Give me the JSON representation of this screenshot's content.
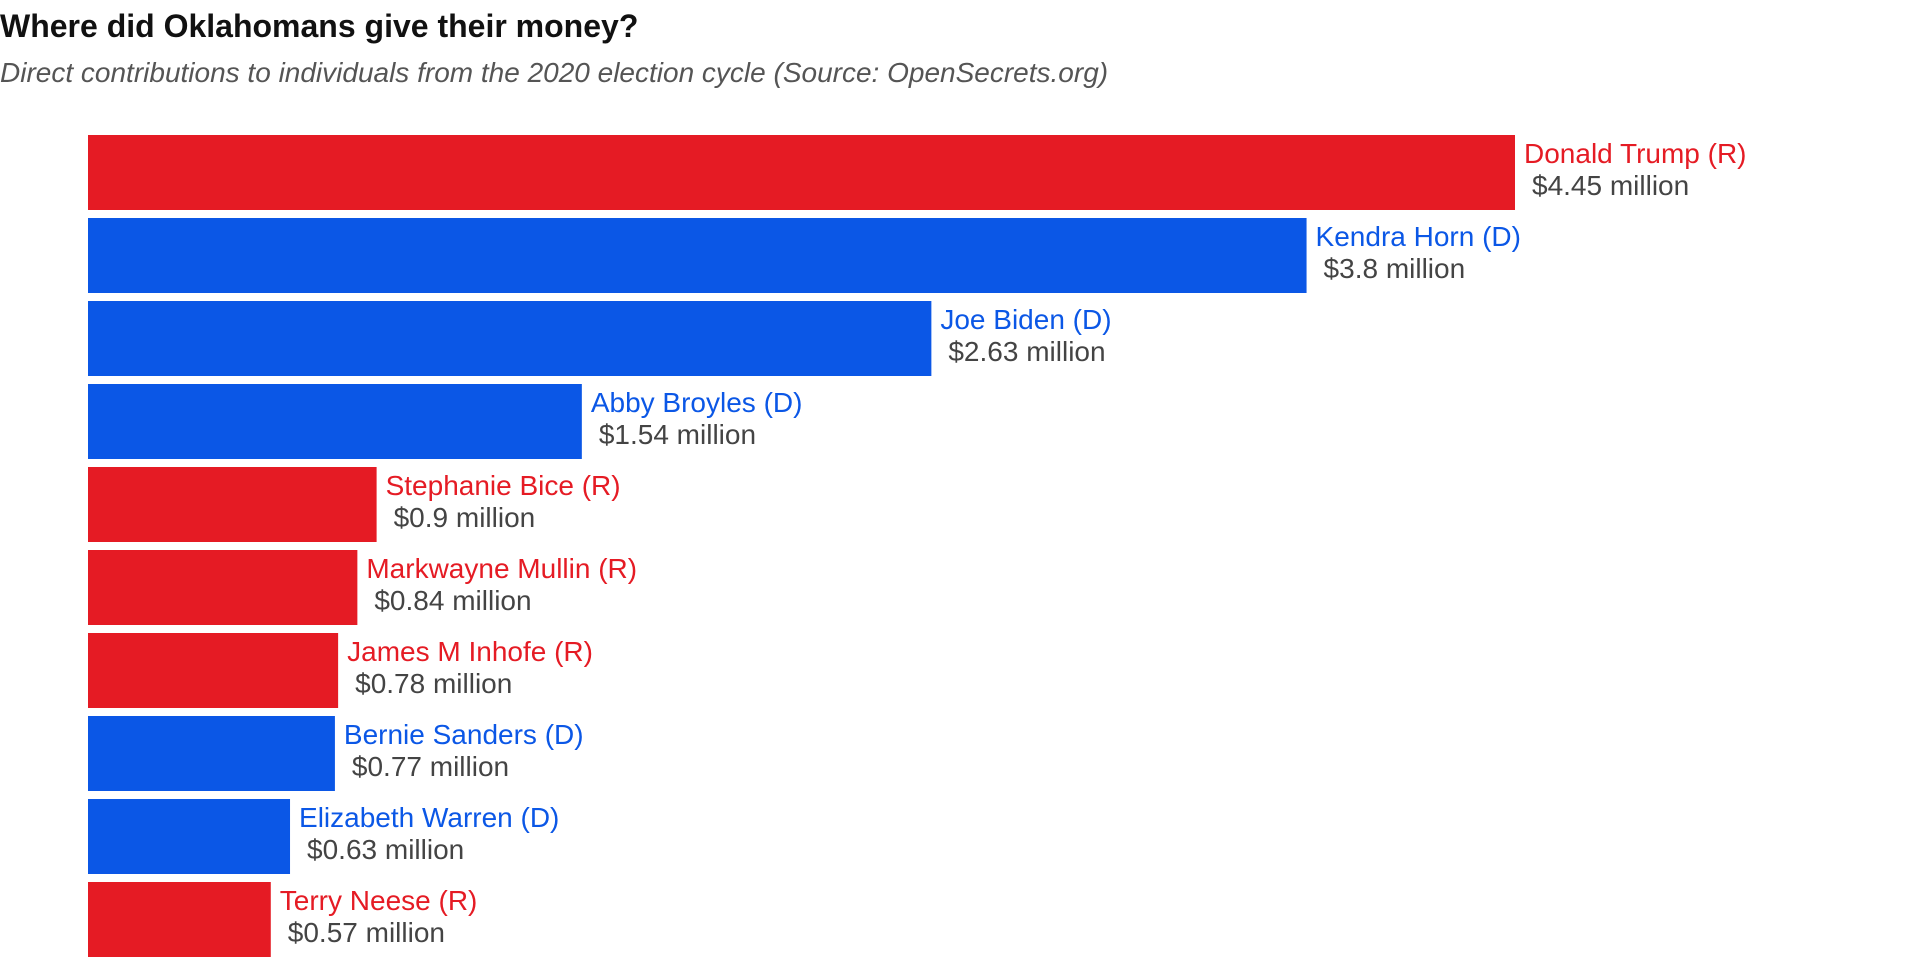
{
  "chart_data": {
    "type": "bar",
    "orientation": "horizontal",
    "title": "Where did Oklahomans give their money?",
    "subtitle": "Direct contributions to individuals from the 2020 election cycle (Source: OpenSecrets.org)",
    "xlabel": "",
    "ylabel": "",
    "grid": false,
    "legend": "none",
    "colors": {
      "R": "#e51b24",
      "D": "#0b57e6",
      "value_label": "#444444"
    },
    "categories": [
      "Donald Trump (R)",
      "Kendra Horn (D)",
      "Joe Biden (D)",
      "Abby Broyles (D)",
      "Stephanie Bice (R)",
      "Markwayne Mullin (R)",
      "James M Inhofe (R)",
      "Bernie Sanders (D)",
      "Elizabeth Warren (D)",
      "Terry Neese (R)"
    ],
    "parties": [
      "R",
      "D",
      "D",
      "D",
      "R",
      "R",
      "R",
      "D",
      "D",
      "R"
    ],
    "values": [
      4.45,
      3.8,
      2.63,
      1.54,
      0.9,
      0.84,
      0.78,
      0.77,
      0.63,
      0.57
    ],
    "value_labels": [
      "$4.45 million",
      "$3.8 million",
      "$2.63 million",
      "$1.54 million",
      "$0.9 million",
      "$0.84 million",
      "$0.78 million",
      "$0.77 million",
      "$0.63 million",
      "$0.57 million"
    ]
  }
}
